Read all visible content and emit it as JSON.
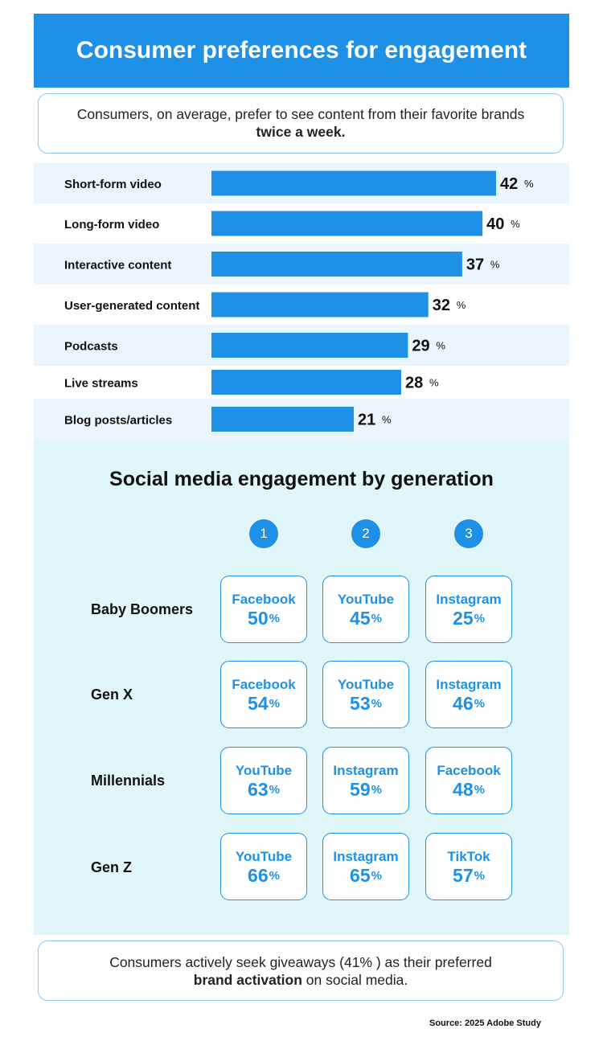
{
  "header": {
    "title": "Consumer preferences for engagement"
  },
  "top_callout": {
    "text": "Consumers, on average, prefer to see content from their favorite brands",
    "emphasis": "twice a week."
  },
  "chart_data": {
    "type": "bar",
    "orientation": "horizontal",
    "title": "",
    "categories": [
      "Short-form video",
      "Long-form video",
      "Interactive content",
      "User-generated content",
      "Podcasts",
      "Live streams",
      "Blog posts/articles"
    ],
    "values": [
      42,
      40,
      37,
      32,
      29,
      28,
      21
    ],
    "unit": "%",
    "xlim": [
      0,
      50
    ],
    "xlabel": "",
    "ylabel": "",
    "color": "#1e90e6",
    "stripe_color": "#eaf5fd"
  },
  "generation_section": {
    "title": "Social media engagement by generation",
    "ranks": [
      "1",
      "2",
      "3"
    ],
    "percent_sign": "%",
    "generations": [
      {
        "name": "Baby Boomers",
        "platforms": [
          {
            "name": "Facebook",
            "value": "50"
          },
          {
            "name": "YouTube",
            "value": "45"
          },
          {
            "name": "Instagram",
            "value": "25"
          }
        ]
      },
      {
        "name": "Gen X",
        "platforms": [
          {
            "name": "Facebook",
            "value": "54"
          },
          {
            "name": "YouTube",
            "value": "53"
          },
          {
            "name": "Instagram",
            "value": "46"
          }
        ]
      },
      {
        "name": "Millennials",
        "platforms": [
          {
            "name": "YouTube",
            "value": "63"
          },
          {
            "name": "Instagram",
            "value": "59"
          },
          {
            "name": "Facebook",
            "value": "48"
          }
        ]
      },
      {
        "name": "Gen Z",
        "platforms": [
          {
            "name": "YouTube",
            "value": "66"
          },
          {
            "name": "Instagram",
            "value": "65"
          },
          {
            "name": "TikTok",
            "value": "57"
          }
        ]
      }
    ]
  },
  "bottom_callout": {
    "text": "Consumers actively seek giveaways (41% ) as their preferred",
    "emphasis": "brand activation",
    "suffix": " on social media."
  },
  "source": "Source: 2025 Adobe Study",
  "colors": {
    "accent": "#1e90e6",
    "panel_bg": "#e0f6f9",
    "callout_border": "#8cc8f2"
  }
}
